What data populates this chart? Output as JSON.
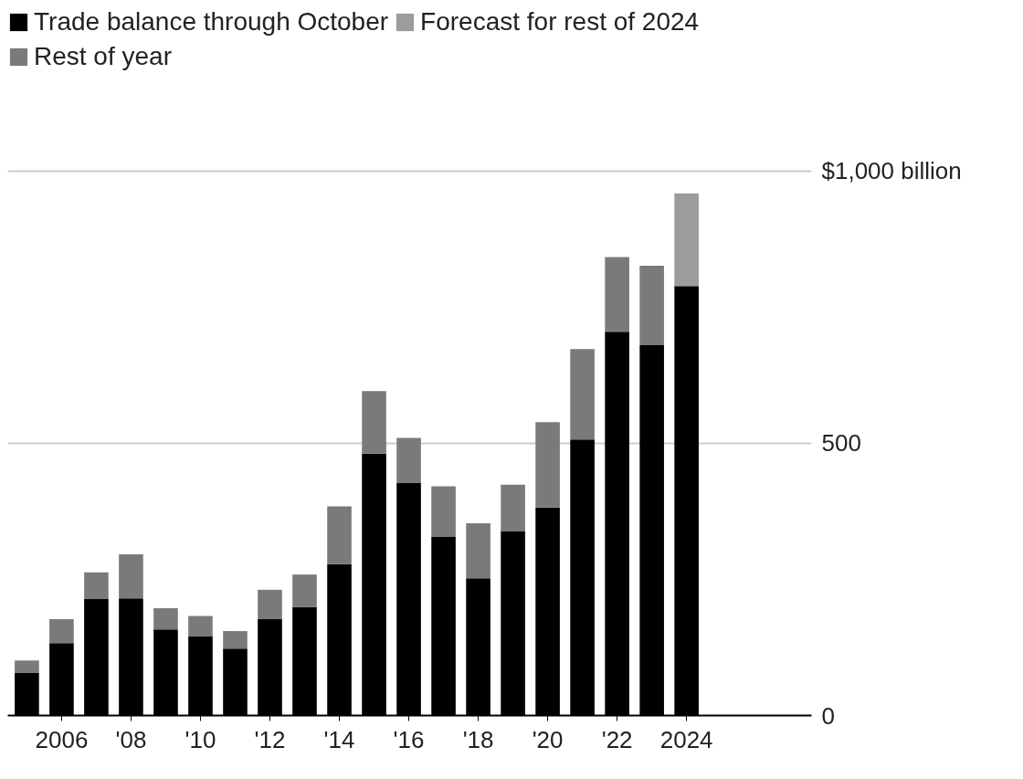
{
  "chart_data": {
    "type": "bar",
    "stacked": true,
    "categories": [
      null,
      "2006",
      null,
      "'08",
      null,
      "'10",
      null,
      "'12",
      null,
      "'14",
      null,
      "'16",
      null,
      "'18",
      null,
      "'20",
      null,
      "'22",
      null,
      "2024"
    ],
    "series": [
      {
        "name": "Trade balance through October",
        "color": "#000000",
        "values": [
          79,
          133,
          214,
          215,
          158,
          146,
          123,
          178,
          199,
          278,
          481,
          427,
          328,
          252,
          338,
          382,
          507,
          705,
          680,
          789
        ]
      },
      {
        "name": "Rest of year",
        "color": "#7a7a7a",
        "values": [
          22,
          44,
          49,
          81,
          39,
          37,
          32,
          53,
          60,
          106,
          115,
          83,
          93,
          101,
          86,
          157,
          166,
          137,
          146,
          null
        ]
      },
      {
        "name": "Forecast for rest of 2024",
        "color": "#9c9c9c",
        "values": [
          null,
          null,
          null,
          null,
          null,
          null,
          null,
          null,
          null,
          null,
          null,
          null,
          null,
          null,
          null,
          null,
          null,
          null,
          null,
          170
        ]
      }
    ],
    "ylim": [
      0,
      1300
    ],
    "yticks": [
      0,
      500,
      {
        "value": 1000,
        "label": "$1,000 billion"
      }
    ],
    "grid": "y",
    "legend": "top left"
  }
}
